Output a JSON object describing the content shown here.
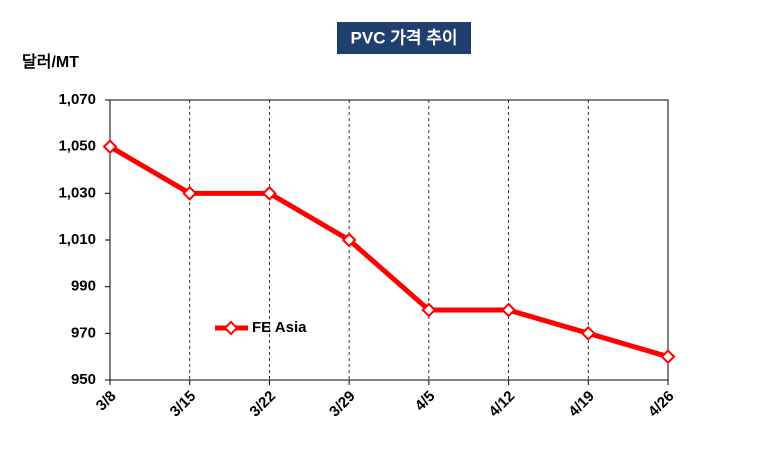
{
  "chart_data": {
    "type": "line",
    "title": "PVC 가격 추이",
    "y_label": "달러/MT",
    "categories": [
      "3/8",
      "3/15",
      "3/22",
      "3/29",
      "4/5",
      "4/12",
      "4/19",
      "4/26"
    ],
    "series": [
      {
        "name": "FE Asia",
        "color": "#ff0000",
        "values": [
          1050,
          1030,
          1030,
          1010,
          980,
          980,
          970,
          960
        ]
      }
    ],
    "ylim": [
      950,
      1070
    ],
    "yticks": [
      950,
      970,
      990,
      {
        "value": 1010,
        "label": "1,010"
      },
      {
        "value": 1030,
        "label": "1,030"
      },
      {
        "value": 1050,
        "label": "1,050"
      },
      {
        "value": 1070,
        "label": "1,070"
      }
    ],
    "grid": true
  }
}
